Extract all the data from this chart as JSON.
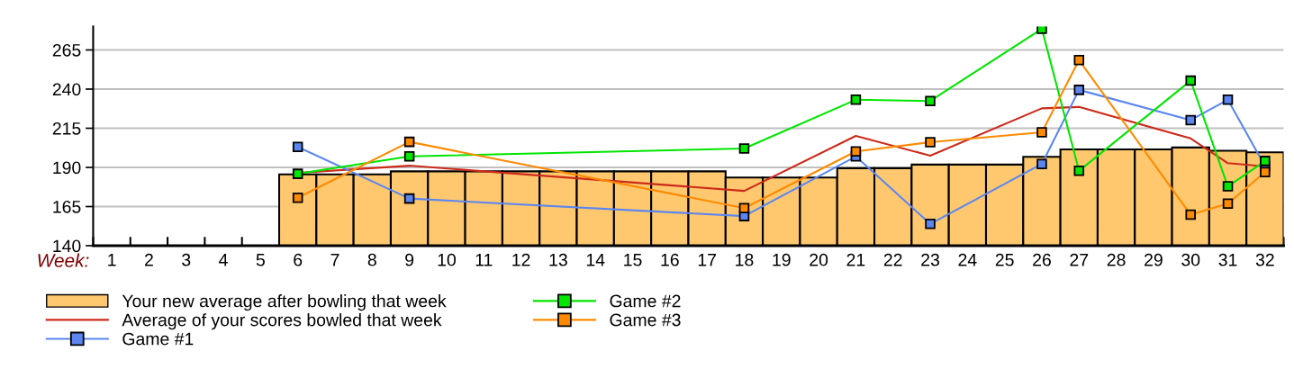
{
  "chart_data": {
    "type": "bar",
    "xlabel": "Week:",
    "categories": [
      "1",
      "2",
      "3",
      "4",
      "5",
      "6",
      "7",
      "8",
      "9",
      "10",
      "11",
      "12",
      "13",
      "14",
      "15",
      "16",
      "17",
      "18",
      "19",
      "20",
      "21",
      "22",
      "23",
      "24",
      "25",
      "26",
      "27",
      "28",
      "29",
      "30",
      "31",
      "32"
    ],
    "series": [
      {
        "name": "Your new average after bowling that week",
        "color": "#ffc86e",
        "values": [
          null,
          null,
          null,
          null,
          null,
          185.5,
          185.5,
          185.5,
          187.5,
          187.5,
          187.5,
          187.5,
          187.5,
          187.5,
          187.5,
          187.5,
          187.5,
          183.5,
          183.5,
          183.5,
          189.5,
          189.5,
          191.8,
          191.8,
          191.8,
          196.8,
          201.5,
          201.5,
          201.5,
          202.7,
          200.6,
          199.6
        ]
      },
      {
        "name": "Average of your scores bowled that week",
        "type": "line",
        "marker": "none",
        "color": "#cc2a1a",
        "values": [
          null,
          null,
          null,
          null,
          null,
          186.5,
          null,
          null,
          191.1,
          null,
          null,
          null,
          null,
          null,
          null,
          null,
          null,
          175,
          null,
          null,
          210.1,
          null,
          197.5,
          null,
          null,
          227.7,
          228.6,
          null,
          null,
          208.5,
          192.7,
          190.6
        ]
      },
      {
        "name": "Game #1",
        "type": "line",
        "marker": "square",
        "color": "#5b86f0",
        "values": [
          null,
          null,
          null,
          null,
          null,
          203.1,
          null,
          null,
          170.1,
          null,
          null,
          null,
          null,
          null,
          null,
          null,
          null,
          158.9,
          null,
          null,
          197,
          null,
          153.9,
          null,
          null,
          192.2,
          239.5,
          null,
          null,
          220.2,
          233.2,
          190.7
        ]
      },
      {
        "name": "Game #2",
        "type": "line",
        "marker": "square",
        "color": "#00e600",
        "values": [
          null,
          null,
          null,
          null,
          null,
          185.9,
          null,
          null,
          197,
          null,
          null,
          null,
          null,
          null,
          null,
          null,
          null,
          202.1,
          null,
          null,
          233.2,
          null,
          232.4,
          null,
          null,
          278.5,
          187.8,
          null,
          null,
          245.4,
          177.9,
          194.1
        ]
      },
      {
        "name": "Game #3",
        "type": "line",
        "marker": "square",
        "color": "#ff8a00",
        "values": [
          null,
          null,
          null,
          null,
          null,
          170.6,
          null,
          null,
          206.3,
          null,
          null,
          null,
          null,
          null,
          null,
          null,
          null,
          164,
          null,
          null,
          200.2,
          null,
          206.1,
          null,
          null,
          212.4,
          258.5,
          null,
          null,
          159.8,
          166.9,
          187
        ]
      }
    ],
    "ylim": [
      140,
      280
    ],
    "yticks": [
      140,
      165,
      190,
      215,
      240,
      265
    ],
    "grid": "y",
    "legend": "bottom"
  }
}
